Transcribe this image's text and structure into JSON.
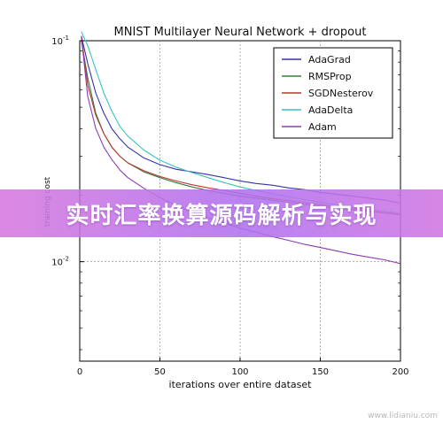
{
  "chart_data": {
    "type": "line",
    "title": "MNIST Multilayer Neural Network + dropout",
    "xlabel": "iterations over entire dataset",
    "ylabel": "training cost",
    "xlim": [
      0,
      200
    ],
    "ylim_log10": [
      -2.45,
      -1
    ],
    "y_scale": "log",
    "xticks": [
      "0",
      "50",
      "100",
      "150",
      "200"
    ],
    "yticks": [
      {
        "base": "10",
        "exp": "-1",
        "value": -1
      },
      {
        "base": "10",
        "exp": "-2",
        "value": -2
      }
    ],
    "grid": true,
    "legend_position": "top-right",
    "series": [
      {
        "name": "AdaGrad",
        "color": "#3434a8",
        "x": [
          1,
          5,
          10,
          15,
          20,
          25,
          30,
          40,
          50,
          60,
          70,
          80,
          90,
          100,
          110,
          120,
          130,
          140,
          150,
          160,
          170,
          180,
          190,
          200
        ],
        "y": [
          0.105,
          0.079,
          0.058,
          0.047,
          0.04,
          0.036,
          0.033,
          0.0295,
          0.0275,
          0.0262,
          0.0255,
          0.0248,
          0.024,
          0.0232,
          0.0226,
          0.0222,
          0.0216,
          0.0212,
          0.0206,
          0.0202,
          0.0198,
          0.0194,
          0.019,
          0.0184
        ]
      },
      {
        "name": "RMSProp",
        "color": "#3b7a3b",
        "x": [
          1,
          5,
          10,
          15,
          20,
          25,
          30,
          40,
          50,
          60,
          70,
          80,
          90,
          100,
          110,
          120,
          130,
          140,
          150,
          160,
          170,
          180,
          190,
          200
        ],
        "y": [
          0.1,
          0.068,
          0.047,
          0.038,
          0.033,
          0.03,
          0.028,
          0.0255,
          0.024,
          0.0228,
          0.0218,
          0.021,
          0.0204,
          0.0198,
          0.0194,
          0.019,
          0.0186,
          0.0182,
          0.0178,
          0.0175,
          0.0172,
          0.0169,
          0.0166,
          0.0163
        ]
      },
      {
        "name": "SGDNesterov",
        "color": "#b33a2e",
        "x": [
          1,
          5,
          10,
          15,
          20,
          25,
          30,
          40,
          50,
          60,
          70,
          80,
          90,
          100,
          110,
          120,
          130,
          140,
          150,
          160,
          170,
          180,
          190,
          200
        ],
        "y": [
          0.105,
          0.063,
          0.046,
          0.038,
          0.033,
          0.03,
          0.028,
          0.0258,
          0.0243,
          0.0232,
          0.0223,
          0.0216,
          0.021,
          0.0204,
          0.0198,
          0.0193,
          0.0189,
          0.0185,
          0.0181,
          0.0177,
          0.0173,
          0.017,
          0.0167,
          0.0164
        ]
      },
      {
        "name": "AdaDelta",
        "color": "#3cc0c0",
        "x": [
          1,
          5,
          10,
          15,
          20,
          25,
          30,
          40,
          50,
          60,
          70,
          80,
          90,
          100,
          110,
          120,
          130,
          140,
          150,
          160,
          170,
          180,
          190,
          200
        ],
        "y": [
          0.11,
          0.095,
          0.074,
          0.058,
          0.048,
          0.041,
          0.037,
          0.032,
          0.0288,
          0.0268,
          0.0253,
          0.024,
          0.0228,
          0.0218,
          0.021,
          0.0203,
          0.0197,
          0.0191,
          0.0186,
          0.0181,
          0.0177,
          0.0173,
          0.0169,
          0.0166
        ]
      },
      {
        "name": "Adam",
        "color": "#8e3ab4",
        "x": [
          1,
          5,
          10,
          15,
          20,
          25,
          30,
          40,
          50,
          60,
          70,
          80,
          90,
          100,
          110,
          120,
          130,
          140,
          150,
          160,
          170,
          180,
          190,
          200
        ],
        "y": [
          0.105,
          0.056,
          0.04,
          0.033,
          0.029,
          0.026,
          0.024,
          0.0215,
          0.0195,
          0.018,
          0.0168,
          0.0158,
          0.015,
          0.0142,
          0.0136,
          0.013,
          0.0125,
          0.012,
          0.0116,
          0.0112,
          0.0108,
          0.0105,
          0.0102,
          0.0098
        ]
      }
    ]
  },
  "banner": {
    "text": "实时汇率换算源码解析与实现"
  },
  "watermark": {
    "text": "www.lidianiu.com"
  }
}
